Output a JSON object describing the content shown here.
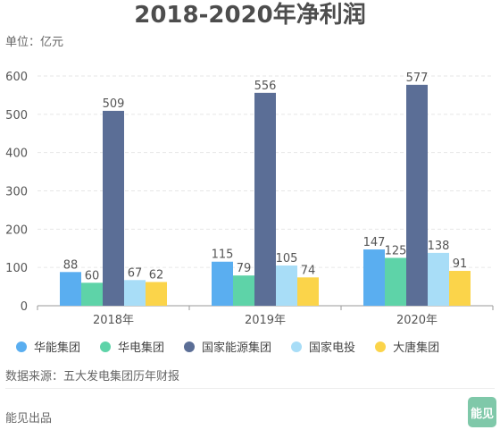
{
  "chart_data": {
    "type": "bar",
    "title": "2018-2020年净利润",
    "unit_label": "单位：亿元",
    "categories": [
      "2018年",
      "2019年",
      "2020年"
    ],
    "series": [
      {
        "name": "华能集团",
        "values": [
          88,
          115,
          147
        ],
        "color": "#5aaef0"
      },
      {
        "name": "华电集团",
        "values": [
          60,
          79,
          125
        ],
        "color": "#5ed3a8"
      },
      {
        "name": "国家能源集团",
        "values": [
          509,
          556,
          577
        ],
        "color": "#5b6e96"
      },
      {
        "name": "国家电投",
        "values": [
          67,
          105,
          138
        ],
        "color": "#a8ddf7"
      },
      {
        "name": "大唐集团",
        "values": [
          62,
          74,
          91
        ],
        "color": "#fbd44a"
      }
    ],
    "yticks": [
      0,
      100,
      200,
      300,
      400,
      500,
      600
    ],
    "ylim": [
      0,
      600
    ],
    "grid": true,
    "legend_position": "bottom"
  },
  "source_text": "数据来源：五大发电集团历年财报",
  "footer_text": "能见出品",
  "logo_text": "能见"
}
